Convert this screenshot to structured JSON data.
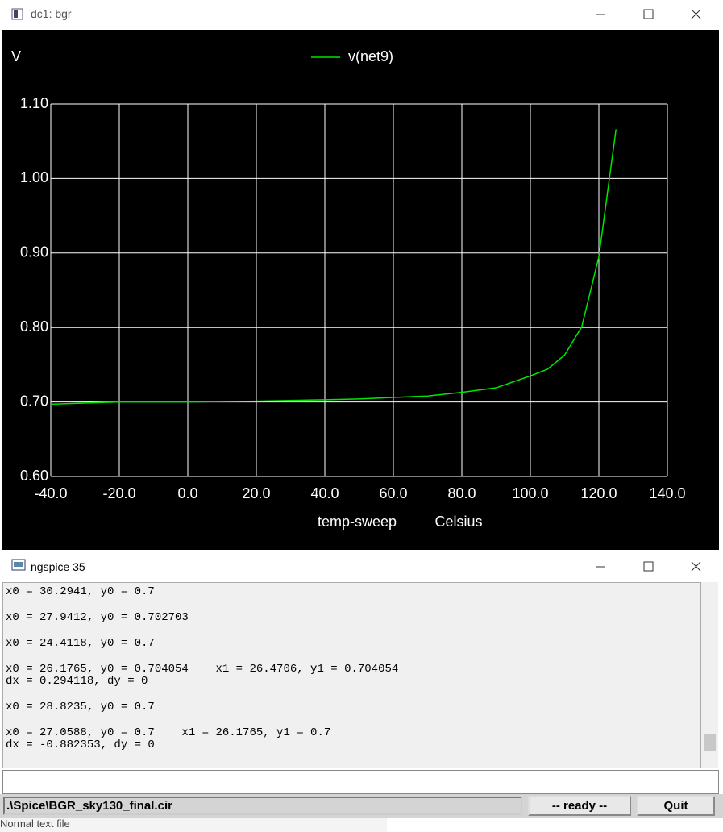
{
  "plot_window": {
    "title": "dc1: bgr",
    "chart": {
      "type": "line",
      "y_label": "V",
      "x_label": "temp-sweep",
      "x_unit": "Celsius",
      "x": [
        -40,
        -20,
        0,
        20,
        40,
        50,
        60,
        70,
        80,
        90,
        100,
        105,
        110,
        115,
        120,
        125
      ],
      "series": [
        {
          "name": "v(net9)",
          "color": "#00e600",
          "values": [
            0.697,
            0.7,
            0.7,
            0.701,
            0.703,
            0.704,
            0.706,
            0.708,
            0.713,
            0.719,
            0.735,
            0.744,
            0.763,
            0.801,
            0.895,
            1.066
          ]
        }
      ],
      "xlim": [
        -40,
        140
      ],
      "ylim": [
        0.6,
        1.1
      ],
      "xticks": [
        {
          "value": -40,
          "label": "-40.0"
        },
        {
          "value": -20,
          "label": "-20.0"
        },
        {
          "value": 0,
          "label": "0.0"
        },
        {
          "value": 20,
          "label": "20.0"
        },
        {
          "value": 40,
          "label": "40.0"
        },
        {
          "value": 60,
          "label": "60.0"
        },
        {
          "value": 80,
          "label": "80.0"
        },
        {
          "value": 100,
          "label": "100.0"
        },
        {
          "value": 120,
          "label": "120.0"
        },
        {
          "value": 140,
          "label": "140.0"
        }
      ],
      "yticks": [
        {
          "value": 0.6,
          "label": "0.60"
        },
        {
          "value": 0.7,
          "label": "0.70"
        },
        {
          "value": 0.8,
          "label": "0.80"
        },
        {
          "value": 0.9,
          "label": "0.90"
        },
        {
          "value": 1.0,
          "label": "1.00"
        },
        {
          "value": 1.1,
          "label": "1.10"
        }
      ],
      "grid": true
    }
  },
  "console_window": {
    "title": "ngspice 35",
    "entries": [
      [
        "x0 = 30.2941, y0 = 0.7"
      ],
      [
        "x0 = 27.9412, y0 = 0.702703"
      ],
      [
        "x0 = 24.4118, y0 = 0.7"
      ],
      [
        "x0 = 26.1765, y0 = 0.704054    x1 = 26.4706, y1 = 0.704054",
        "dx = 0.294118, dy = 0"
      ],
      [
        "x0 = 28.8235, y0 = 0.7"
      ],
      [
        "x0 = 27.0588, y0 = 0.7    x1 = 26.1765, y1 = 0.7",
        "dx = -0.882353, dy = 0"
      ]
    ],
    "file": ".\\Spice\\BGR_sky130_final.cir",
    "status": "-- ready --",
    "quit": "Quit"
  },
  "background_text": "Normal text file"
}
